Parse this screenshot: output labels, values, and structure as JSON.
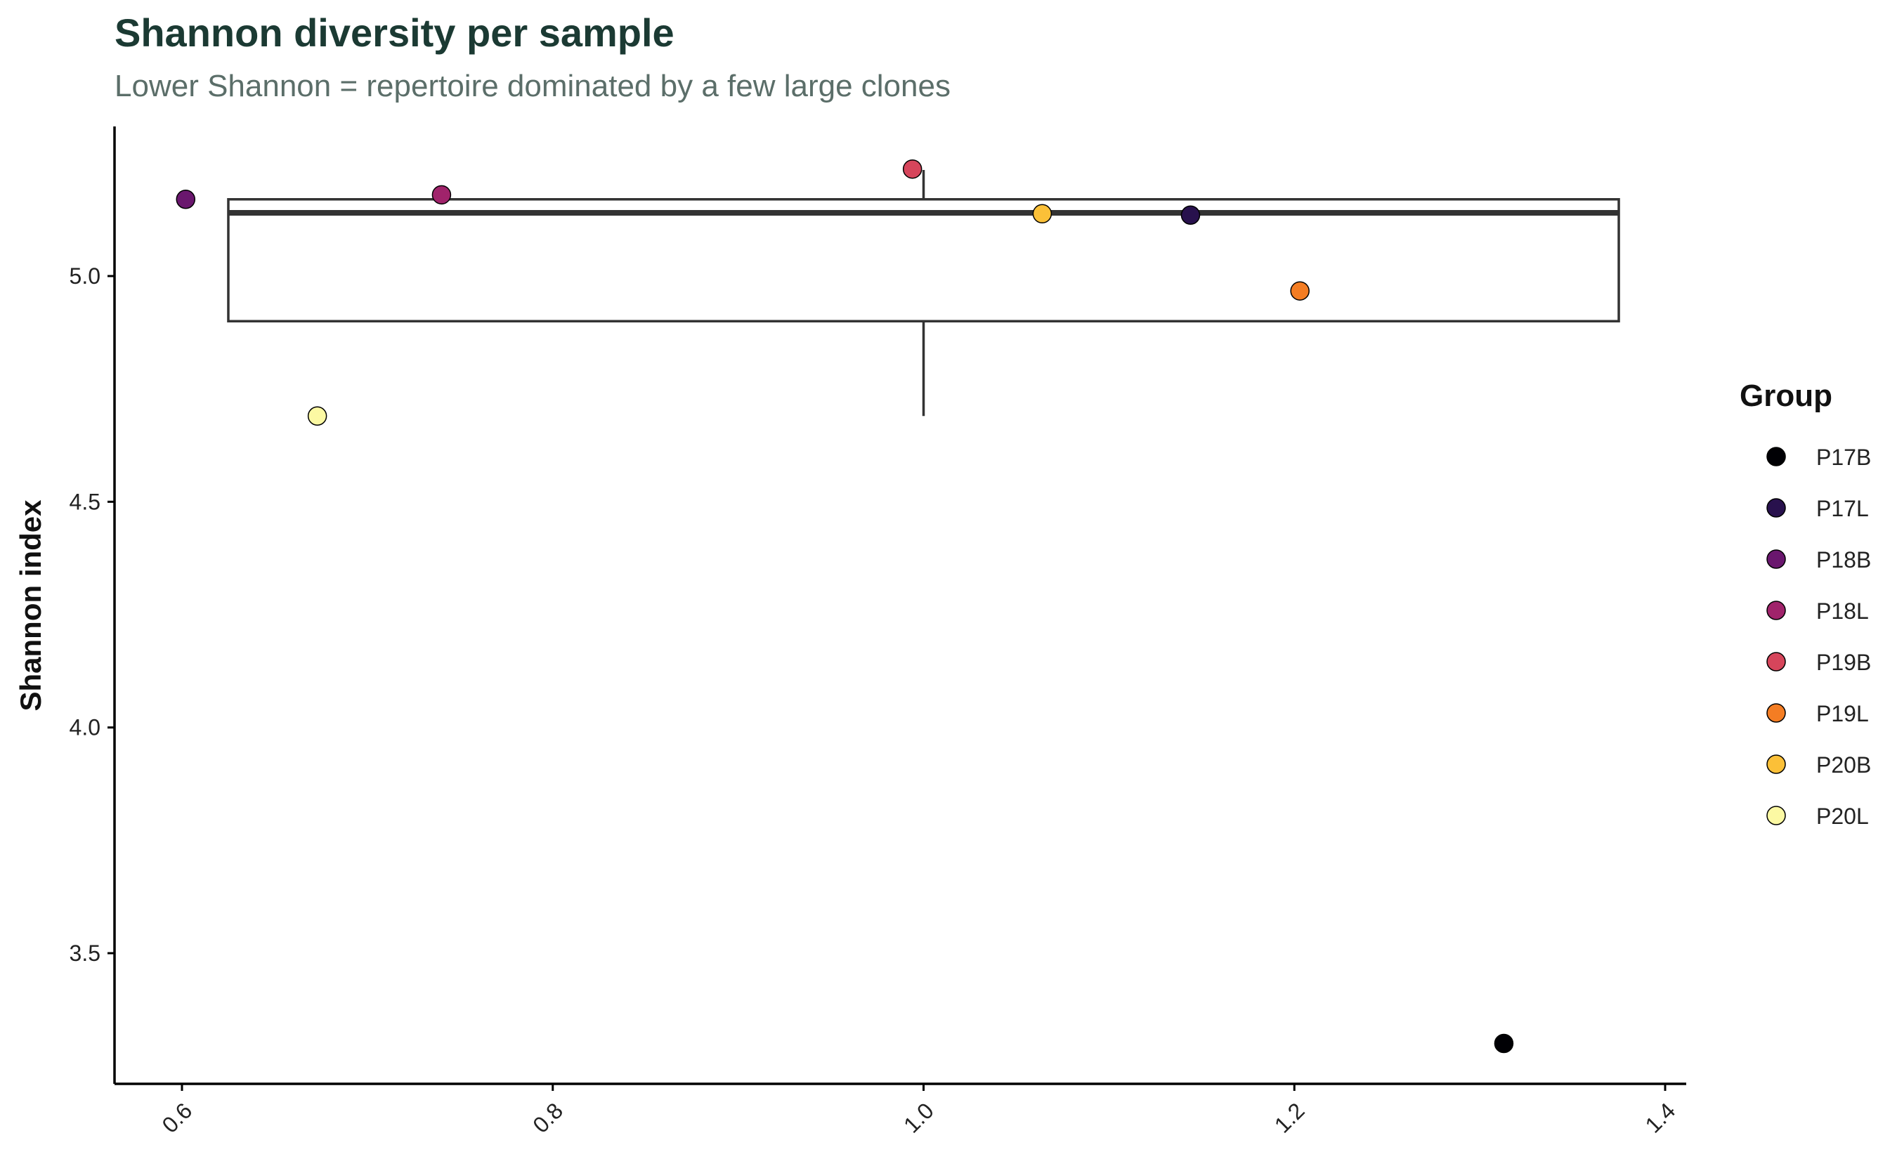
{
  "chart_data": {
    "type": "scatter",
    "title": "Shannon diversity per sample",
    "subtitle": "Lower Shannon = repertoire dominated by a few large clones",
    "xlabel": "",
    "ylabel": "Shannon index",
    "xlim": [
      0.57,
      1.41
    ],
    "ylim": [
      3.22,
      5.33
    ],
    "x_ticks": [
      {
        "value": 0.6,
        "label": "0.6"
      },
      {
        "value": 0.8,
        "label": "0.8"
      },
      {
        "value": 1.0,
        "label": "1.0"
      },
      {
        "value": 1.2,
        "label": "1.2"
      },
      {
        "value": 1.4,
        "label": "1.4"
      }
    ],
    "y_ticks": [
      {
        "value": 3.5,
        "label": "3.5"
      },
      {
        "value": 4.0,
        "label": "4.0"
      },
      {
        "value": 4.5,
        "label": "4.5"
      },
      {
        "value": 5.0,
        "label": "5.0"
      }
    ],
    "grid": false,
    "legend": {
      "title": "Group",
      "position": "right"
    },
    "boxplot": {
      "x_center": 1.0,
      "x_range": [
        0.625,
        1.375
      ],
      "whisker_low": 4.69,
      "q1": 4.9,
      "median": 5.14,
      "q3": 5.17,
      "whisker_high": 5.235
    },
    "series": [
      {
        "name": "P17B",
        "color": "#000004",
        "x": 1.313,
        "y": 3.3
      },
      {
        "name": "P17L",
        "color": "#28114d",
        "x": 1.144,
        "y": 5.135
      },
      {
        "name": "P18B",
        "color": "#6a176e",
        "x": 0.602,
        "y": 5.17
      },
      {
        "name": "P18L",
        "color": "#a0236b",
        "x": 0.74,
        "y": 5.18
      },
      {
        "name": "P19B",
        "color": "#d6455b",
        "x": 0.994,
        "y": 5.237
      },
      {
        "name": "P19L",
        "color": "#f47d23",
        "x": 1.203,
        "y": 4.967
      },
      {
        "name": "P20B",
        "color": "#fbc038",
        "x": 1.064,
        "y": 5.138
      },
      {
        "name": "P20L",
        "color": "#fcf9a3",
        "x": 0.673,
        "y": 4.69
      }
    ]
  }
}
